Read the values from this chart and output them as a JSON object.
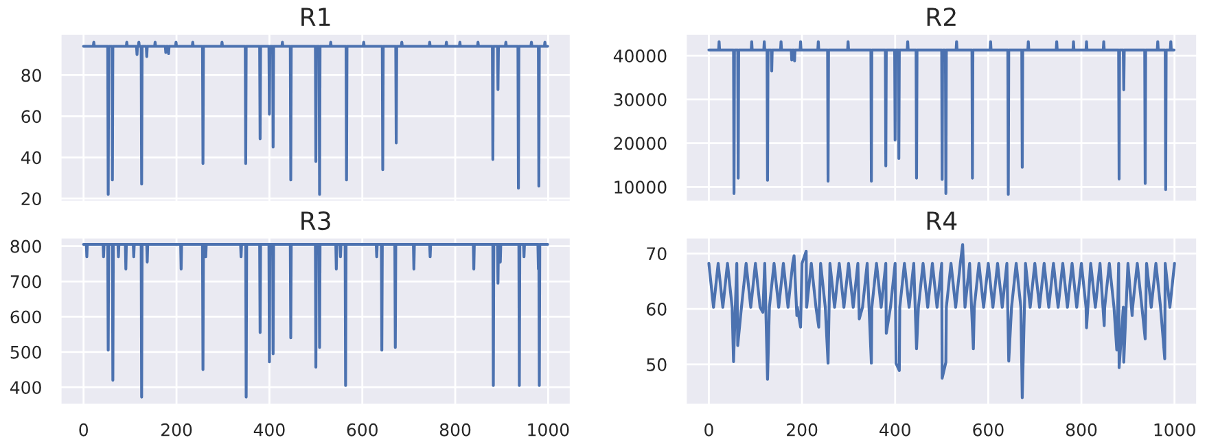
{
  "chart_data": [
    {
      "type": "line",
      "title": "R1",
      "color": "#4c72b0",
      "grid": true,
      "tick_labels": "y",
      "xlim": [
        -50,
        1049
      ],
      "xticks": [
        0,
        200,
        400,
        600,
        800,
        1000
      ],
      "ylim": [
        18.3,
        100.2
      ],
      "yticks": [
        20,
        40,
        60,
        80
      ],
      "x": [
        0,
        21,
        22,
        23,
        52,
        53,
        54,
        61,
        62,
        63,
        92,
        93,
        94,
        114,
        115,
        116,
        118,
        119,
        120,
        124,
        125,
        126,
        135,
        136,
        137,
        153,
        154,
        155,
        176,
        177,
        178,
        182,
        183,
        184,
        198,
        199,
        200,
        234,
        235,
        236,
        256,
        257,
        258,
        297,
        298,
        299,
        348,
        349,
        350,
        379,
        380,
        381,
        399,
        400,
        401,
        407,
        408,
        409,
        427,
        428,
        429,
        445,
        446,
        447,
        499,
        500,
        501,
        507,
        508,
        509,
        531,
        532,
        533,
        565,
        566,
        567,
        602,
        603,
        604,
        643,
        644,
        645,
        672,
        673,
        674,
        684,
        685,
        686,
        744,
        745,
        746,
        780,
        781,
        782,
        809,
        810,
        811,
        848,
        849,
        850,
        880,
        881,
        882,
        891,
        892,
        893,
        908,
        909,
        910,
        935,
        936,
        937,
        963,
        964,
        965,
        979,
        980,
        981,
        992,
        993,
        994,
        999
      ],
      "values": [
        94,
        94,
        96,
        94,
        94,
        22,
        94,
        94,
        29,
        94,
        94,
        96,
        94,
        94,
        90,
        94,
        94,
        96,
        94,
        94,
        27,
        94,
        94,
        89,
        94,
        94,
        96,
        94,
        94,
        91,
        94,
        94,
        90.5,
        94,
        94,
        96,
        94,
        94,
        96,
        94,
        94,
        37,
        94,
        94,
        96,
        94,
        94,
        37,
        94,
        94,
        49,
        94,
        94,
        61,
        94,
        94,
        45,
        94,
        94,
        96,
        94,
        94,
        29,
        94,
        94,
        38,
        94,
        94,
        22,
        94,
        94,
        96,
        94,
        94,
        29,
        94,
        94,
        96,
        94,
        94,
        34,
        94,
        94,
        47,
        94,
        94,
        96,
        94,
        94,
        96,
        94,
        94,
        96,
        94,
        94,
        96,
        94,
        94,
        96,
        94,
        94,
        39,
        94,
        94,
        73,
        94,
        94,
        96,
        94,
        94,
        25,
        94,
        94,
        96,
        94,
        94,
        26,
        94,
        94,
        96,
        94,
        94
      ]
    },
    {
      "type": "line",
      "title": "R2",
      "color": "#4c72b0",
      "grid": true,
      "tick_labels": "y",
      "xlim": [
        -50,
        1049
      ],
      "xticks": [
        0,
        200,
        400,
        600,
        800,
        1000
      ],
      "ylim": [
        6550,
        45050
      ],
      "yticks": [
        10000,
        20000,
        30000,
        40000
      ],
      "x": [
        0,
        21,
        22,
        23,
        53,
        54,
        55,
        62,
        63,
        64,
        91,
        92,
        93,
        118,
        119,
        120,
        125,
        126,
        127,
        134,
        135,
        136,
        154,
        155,
        156,
        177,
        178,
        179,
        183,
        184,
        185,
        196,
        197,
        198,
        234,
        235,
        236,
        255,
        256,
        257,
        298,
        299,
        300,
        348,
        349,
        350,
        379,
        380,
        381,
        399,
        400,
        401,
        407,
        408,
        409,
        426,
        427,
        428,
        445,
        446,
        447,
        500,
        501,
        502,
        508,
        509,
        510,
        531,
        532,
        533,
        565,
        566,
        567,
        604,
        605,
        606,
        642,
        643,
        644,
        672,
        673,
        674,
        685,
        686,
        687,
        746,
        747,
        748,
        782,
        783,
        784,
        810,
        811,
        812,
        847,
        848,
        849,
        880,
        881,
        882,
        890,
        891,
        892,
        936,
        937,
        938,
        963,
        964,
        965,
        980,
        981,
        982,
        991,
        992,
        993,
        999
      ],
      "values": [
        41300,
        41300,
        43200,
        41300,
        41300,
        8500,
        41300,
        41300,
        12000,
        41300,
        41300,
        43200,
        41300,
        41300,
        43200,
        41300,
        41300,
        11500,
        41300,
        41300,
        36500,
        41300,
        41300,
        43200,
        41300,
        41300,
        39000,
        41300,
        41300,
        38800,
        41300,
        41300,
        43200,
        41300,
        41300,
        43200,
        41300,
        41300,
        11300,
        41300,
        41300,
        43200,
        41300,
        41300,
        11300,
        41300,
        41300,
        14800,
        41300,
        41300,
        20700,
        41300,
        41300,
        16500,
        41300,
        41300,
        43200,
        41300,
        41300,
        12000,
        41300,
        41300,
        11700,
        41300,
        41300,
        8500,
        41300,
        41300,
        43200,
        41300,
        41300,
        12000,
        41300,
        41300,
        43200,
        41300,
        41300,
        8300,
        41300,
        41300,
        14500,
        41300,
        41300,
        43200,
        41300,
        41300,
        43200,
        41300,
        41300,
        43200,
        41300,
        41300,
        43200,
        41300,
        41300,
        43200,
        41300,
        41300,
        11800,
        41300,
        41300,
        32200,
        41300,
        41300,
        10800,
        41300,
        41300,
        43200,
        41300,
        41300,
        9400,
        41300,
        41300,
        43200,
        41300,
        41300
      ]
    },
    {
      "type": "line",
      "title": "R3",
      "color": "#4c72b0",
      "grid": true,
      "xlim": [
        -50,
        1049
      ],
      "xticks": [
        0,
        200,
        400,
        600,
        800,
        1000
      ],
      "ylim": [
        350,
        825
      ],
      "yticks": [
        400,
        500,
        600,
        700,
        800
      ],
      "x": [
        0,
        6,
        7,
        8,
        42,
        43,
        44,
        52,
        53,
        54,
        62,
        63,
        64,
        74,
        75,
        76,
        90,
        91,
        92,
        107,
        108,
        109,
        124,
        125,
        126,
        136,
        137,
        138,
        209,
        210,
        211,
        256,
        257,
        258,
        262,
        263,
        264,
        338,
        339,
        340,
        349,
        350,
        351,
        379,
        380,
        381,
        399,
        400,
        401,
        407,
        408,
        409,
        445,
        446,
        447,
        499,
        500,
        501,
        507,
        508,
        509,
        543,
        544,
        545,
        552,
        553,
        554,
        563,
        564,
        565,
        630,
        631,
        632,
        641,
        642,
        643,
        670,
        671,
        672,
        710,
        711,
        712,
        745,
        746,
        747,
        839,
        840,
        841,
        881,
        882,
        883,
        891,
        892,
        893,
        896,
        897,
        898,
        937,
        938,
        939,
        947,
        948,
        949,
        978,
        979,
        980,
        981,
        982,
        999
      ],
      "values": [
        805,
        805,
        770,
        805,
        805,
        770,
        805,
        805,
        505,
        805,
        805,
        420,
        805,
        805,
        770,
        805,
        805,
        735,
        805,
        805,
        770,
        805,
        805,
        372,
        805,
        805,
        755,
        805,
        805,
        735,
        805,
        805,
        450,
        805,
        805,
        770,
        805,
        805,
        770,
        805,
        805,
        372,
        805,
        805,
        555,
        805,
        805,
        472,
        805,
        805,
        495,
        805,
        805,
        540,
        805,
        805,
        457,
        805,
        805,
        513,
        805,
        805,
        735,
        805,
        805,
        770,
        805,
        805,
        405,
        805,
        805,
        770,
        805,
        805,
        505,
        805,
        805,
        513,
        805,
        805,
        735,
        805,
        805,
        770,
        805,
        805,
        735,
        805,
        805,
        405,
        805,
        805,
        695,
        805,
        805,
        755,
        805,
        805,
        405,
        805,
        805,
        770,
        805,
        805,
        735,
        805,
        405,
        805,
        805
      ]
    },
    {
      "type": "line",
      "title": "R4",
      "color": "#4c72b0",
      "grid": true,
      "xlim": [
        -50,
        1049
      ],
      "xticks": [
        0,
        200,
        400,
        600,
        800,
        1000
      ],
      "ylim": [
        42.7,
        72.9
      ],
      "yticks": [
        50,
        60,
        70
      ],
      "x": [
        0,
        10,
        20,
        30,
        40,
        50,
        53,
        60,
        62,
        70,
        80,
        90,
        100,
        110,
        116,
        120,
        126,
        130,
        140,
        150,
        160,
        170,
        180,
        183,
        189,
        190,
        197,
        200,
        209,
        210,
        220,
        230,
        236,
        240,
        250,
        256,
        260,
        270,
        280,
        290,
        300,
        310,
        320,
        323,
        330,
        340,
        349,
        350,
        360,
        370,
        380,
        381,
        390,
        400,
        402,
        409,
        410,
        420,
        430,
        440,
        446,
        450,
        460,
        470,
        480,
        490,
        500,
        501,
        509,
        510,
        520,
        530,
        540,
        545,
        550,
        560,
        568,
        570,
        580,
        590,
        600,
        610,
        620,
        630,
        640,
        644,
        650,
        660,
        670,
        673,
        680,
        690,
        700,
        710,
        720,
        730,
        740,
        750,
        760,
        770,
        780,
        790,
        800,
        810,
        811,
        820,
        830,
        840,
        849,
        850,
        860,
        870,
        876,
        880,
        881,
        890,
        891,
        900,
        909,
        910,
        920,
        930,
        937,
        940,
        950,
        960,
        970,
        979,
        980,
        990,
        1000
      ],
      "values": [
        68.2,
        60.3,
        68.2,
        60.3,
        68.2,
        60.3,
        50.5,
        68.2,
        53.4,
        60.3,
        68.2,
        60.3,
        68.2,
        60.3,
        59.4,
        68.2,
        47.3,
        60.3,
        68.2,
        60.3,
        68.2,
        60.3,
        68.2,
        69.6,
        58.8,
        60.3,
        56.7,
        68.2,
        70.4,
        60.3,
        68.2,
        60.3,
        56.7,
        68.2,
        60.3,
        50.2,
        68.2,
        60.3,
        68.2,
        60.3,
        68.2,
        60.3,
        68.2,
        58.2,
        60.3,
        68.2,
        50.2,
        60.3,
        68.2,
        60.3,
        68.2,
        55.6,
        60.3,
        68.2,
        50.2,
        48.9,
        60.3,
        68.2,
        60.3,
        68.2,
        52.8,
        60.3,
        68.2,
        60.3,
        68.2,
        60.3,
        68.2,
        47.5,
        50.4,
        60.3,
        68.2,
        60.3,
        68.2,
        71.6,
        60.3,
        68.2,
        52.8,
        60.3,
        68.2,
        60.3,
        68.2,
        60.3,
        68.2,
        60.3,
        68.2,
        50.6,
        60.3,
        68.2,
        60.3,
        44.0,
        68.2,
        60.3,
        68.2,
        60.3,
        68.2,
        60.3,
        68.2,
        60.3,
        68.2,
        60.3,
        68.2,
        60.3,
        68.2,
        60.3,
        56.6,
        68.2,
        60.3,
        68.2,
        57.0,
        60.3,
        68.2,
        60.3,
        52.6,
        68.2,
        49.4,
        60.3,
        50.4,
        68.2,
        58.8,
        60.3,
        68.2,
        60.3,
        54.6,
        68.2,
        60.3,
        68.2,
        60.3,
        51.0,
        68.2,
        60.3,
        68.2
      ]
    }
  ]
}
